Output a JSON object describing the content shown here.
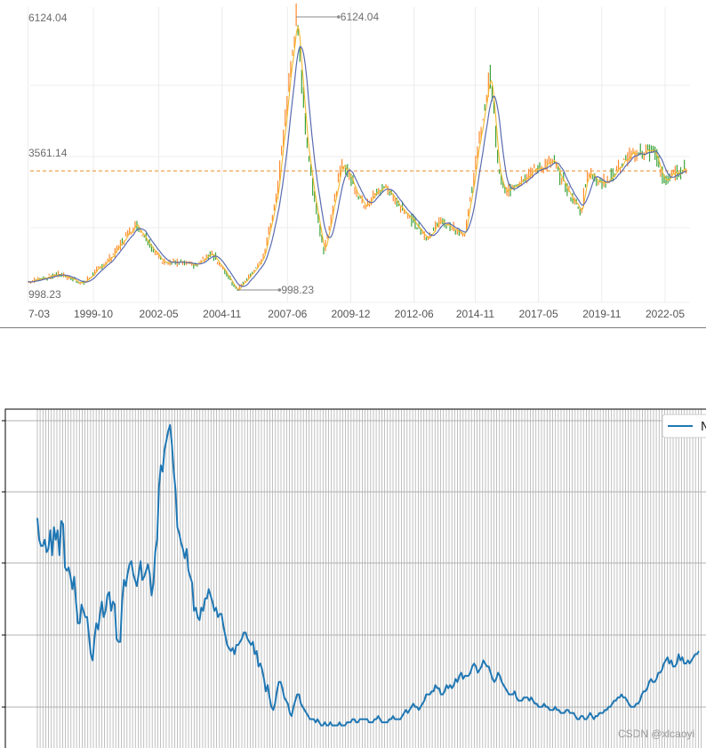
{
  "top_chart": {
    "colors": {
      "candle_up": "#ff8a2c",
      "candle_down": "#3aa33a",
      "ma_fast": "#f2b92e",
      "ma_slow": "#5a6bb0",
      "ref_line": "#e88b2a",
      "grid": "#ececec"
    }
  },
  "bottom_chart": {
    "legend_label": "N",
    "watermark": "CSDN @xlcaoyi",
    "colors": {
      "line": "#1f77b4",
      "grid": "#b0b0b0",
      "frame": "#000000"
    }
  },
  "chart_data": [
    {
      "type": "line",
      "x_tick_labels": [
        "7-03",
        "1999-10",
        "2002-05",
        "2004-11",
        "2007-06",
        "2009-12",
        "2012-06",
        "2014-11",
        "2017-05",
        "2019-11",
        "2022-05"
      ],
      "y_labels": [
        "6124.04",
        "3561.14",
        "998.23"
      ],
      "ylim": [
        998.23,
        6124.04
      ],
      "reference_line": 3233,
      "annotations": [
        {
          "label": "6124.04",
          "date": "2007-10",
          "value": 6124.04
        },
        {
          "label": "998.23",
          "date": "2005-06",
          "value": 998.23
        }
      ],
      "x_dates": [
        "1997-03",
        "1998-06",
        "1999-05",
        "2000-06",
        "2001-06",
        "2002-06",
        "2003-11",
        "2004-06",
        "2005-06",
        "2006-06",
        "2007-01",
        "2007-10",
        "2008-04",
        "2008-11",
        "2009-08",
        "2010-06",
        "2011-04",
        "2012-12",
        "2013-06",
        "2014-06",
        "2015-06",
        "2015-10",
        "2016-01",
        "2016-06",
        "2017-01",
        "2017-12",
        "2018-06",
        "2019-01",
        "2019-04",
        "2020-01",
        "2020-07",
        "2021-02",
        "2021-12",
        "2022-04",
        "2023-03"
      ],
      "values": [
        1150,
        1300,
        1120,
        1600,
        2245,
        1550,
        1460,
        1700,
        998,
        1550,
        2800,
        6124,
        3400,
        1700,
        3400,
        2600,
        2950,
        1950,
        2300,
        2050,
        5100,
        3200,
        2800,
        3000,
        3200,
        3400,
        2900,
        2450,
        3200,
        3000,
        3300,
        3550,
        3600,
        3050,
        3300
      ],
      "series": [
        {
          "name": "",
          "kind": "price",
          "values_ref": "values"
        },
        {
          "name": "",
          "kind": "moving-average-fast"
        },
        {
          "name": "",
          "kind": "moving-average-slow"
        }
      ]
    },
    {
      "type": "line",
      "legend": "top-right",
      "grid": true,
      "series_name": "N",
      "y_gridlines": 5,
      "values": [
        70,
        63,
        61,
        61,
        63,
        59,
        60,
        66,
        58,
        67,
        63,
        66,
        58,
        69,
        68,
        54,
        53,
        54,
        51,
        47,
        51,
        43,
        36,
        36,
        42,
        40,
        38,
        38,
        32,
        26,
        24,
        31,
        36,
        34,
        39,
        43,
        38,
        40,
        45,
        46,
        40,
        43,
        42,
        31,
        30,
        30,
        43,
        50,
        48,
        52,
        55,
        56,
        52,
        50,
        48,
        52,
        56,
        50,
        51,
        53,
        55,
        52,
        45,
        49,
        59,
        63,
        80,
        87,
        85,
        92,
        95,
        98,
        100,
        94,
        85,
        79,
        67,
        65,
        62,
        60,
        57,
        60,
        53,
        51,
        49,
        40,
        41,
        38,
        37,
        41,
        40,
        44,
        44,
        47,
        45,
        43,
        40,
        41,
        38,
        39,
        39,
        35,
        32,
        29,
        28,
        27,
        28,
        26,
        29,
        29,
        30,
        31,
        33,
        33,
        31,
        30,
        29,
        30,
        26,
        27,
        22,
        23,
        21,
        18,
        14,
        16,
        12,
        9,
        8,
        10,
        14,
        17,
        17,
        15,
        12,
        11,
        10,
        7,
        6,
        9,
        11,
        13,
        13,
        10,
        9,
        8,
        7,
        6,
        5,
        5,
        5,
        4,
        5,
        4,
        3,
        3,
        4,
        3,
        3,
        4,
        3,
        3,
        3,
        3,
        4,
        3,
        3,
        3,
        4,
        4,
        4,
        5,
        5,
        4,
        4,
        5,
        5,
        5,
        5,
        5,
        4,
        4,
        4,
        5,
        5,
        6,
        5,
        4,
        4,
        4,
        4,
        5,
        5,
        6,
        5,
        5,
        5,
        5,
        6,
        7,
        8,
        7,
        8,
        9,
        10,
        9,
        9,
        8,
        9,
        10,
        11,
        13,
        13,
        13,
        14,
        14,
        16,
        15,
        15,
        13,
        13,
        14,
        16,
        15,
        16,
        15,
        16,
        18,
        17,
        19,
        20,
        18,
        19,
        19,
        19,
        20,
        22,
        23,
        22,
        20,
        21,
        22,
        24,
        23,
        22,
        22,
        20,
        18,
        17,
        18,
        20,
        19,
        17,
        16,
        15,
        14,
        13,
        13,
        13,
        14,
        12,
        11,
        11,
        11,
        12,
        12,
        12,
        11,
        12,
        11,
        10,
        10,
        9,
        9,
        9,
        10,
        9,
        9,
        8,
        8,
        8,
        9,
        8,
        8,
        7,
        7,
        7,
        8,
        8,
        7,
        7,
        7,
        6,
        5,
        5,
        6,
        6,
        5,
        5,
        6,
        7,
        6,
        5,
        6,
        6,
        7,
        7,
        7,
        8,
        8,
        9,
        9,
        10,
        11,
        11,
        12,
        12,
        13,
        12,
        12,
        11,
        10,
        9,
        9,
        9,
        10,
        10,
        11,
        13,
        14,
        14,
        15,
        17,
        18,
        17,
        17,
        18,
        20,
        20,
        21,
        23,
        24,
        25,
        23,
        24,
        22,
        22,
        23,
        26,
        24,
        25,
        23,
        23,
        24,
        23,
        24,
        25,
        26,
        26,
        27
      ]
    }
  ]
}
